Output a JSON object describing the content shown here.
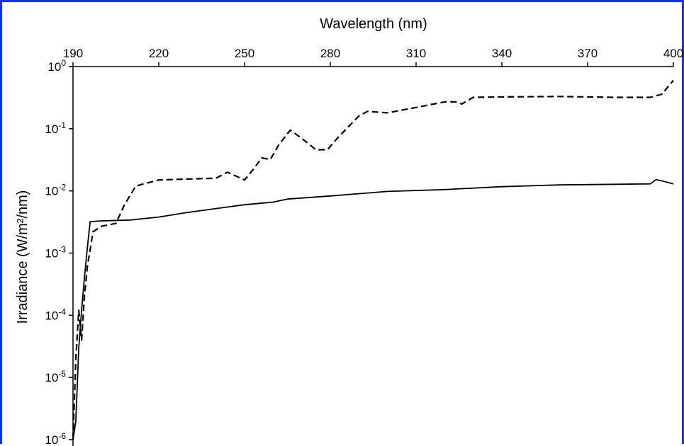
{
  "chart_data": {
    "type": "line",
    "xlabel": "Wavelength (nm)",
    "ylabel": "Irradiance (W/m²/nm)",
    "x_axis_position": "top",
    "xlim": [
      190,
      400
    ],
    "ylim": [
      1e-06,
      1
    ],
    "y_scale": "log",
    "grid": false,
    "legend": "none",
    "x_ticks": [
      190,
      220,
      250,
      280,
      310,
      340,
      370,
      400
    ],
    "y_ticks": [
      {
        "value": 1,
        "base": "10",
        "exp": "0"
      },
      {
        "value": 0.1,
        "base": "10",
        "exp": "-1"
      },
      {
        "value": 0.01,
        "base": "10",
        "exp": "-2"
      },
      {
        "value": 0.001,
        "base": "10",
        "exp": "-3"
      },
      {
        "value": 0.0001,
        "base": "10",
        "exp": "-4"
      },
      {
        "value": 1e-05,
        "base": "10",
        "exp": "-5"
      },
      {
        "value": 1e-06,
        "base": "10",
        "exp": "-6"
      }
    ],
    "series": [
      {
        "style": "solid",
        "color": "#000000",
        "points": [
          [
            190,
            1e-06
          ],
          [
            191,
            2e-06
          ],
          [
            192,
            3e-05
          ],
          [
            193,
            0.00012
          ],
          [
            194,
            0.0004
          ],
          [
            195,
            0.0012
          ],
          [
            196,
            0.0032
          ],
          [
            200,
            0.0033
          ],
          [
            210,
            0.0034
          ],
          [
            220,
            0.0038
          ],
          [
            230,
            0.0045
          ],
          [
            240,
            0.0052
          ],
          [
            250,
            0.006
          ],
          [
            260,
            0.0066
          ],
          [
            265,
            0.0074
          ],
          [
            280,
            0.0083
          ],
          [
            300,
            0.0098
          ],
          [
            320,
            0.0105
          ],
          [
            340,
            0.0117
          ],
          [
            360,
            0.0125
          ],
          [
            380,
            0.0128
          ],
          [
            392,
            0.013
          ],
          [
            394,
            0.0152
          ],
          [
            396,
            0.0145
          ],
          [
            400,
            0.013
          ]
        ]
      },
      {
        "style": "dashed",
        "color": "#000000",
        "points": [
          [
            190,
            1e-06
          ],
          [
            191,
            2e-05
          ],
          [
            192,
            0.00012
          ],
          [
            193,
            4e-05
          ],
          [
            194,
            0.0002
          ],
          [
            195,
            0.0006
          ],
          [
            197,
            0.0022
          ],
          [
            200,
            0.0027
          ],
          [
            205,
            0.003
          ],
          [
            208,
            0.006
          ],
          [
            212,
            0.012
          ],
          [
            220,
            0.015
          ],
          [
            230,
            0.0155
          ],
          [
            240,
            0.016
          ],
          [
            244,
            0.02
          ],
          [
            250,
            0.015
          ],
          [
            253,
            0.022
          ],
          [
            256,
            0.034
          ],
          [
            259,
            0.032
          ],
          [
            262,
            0.055
          ],
          [
            266,
            0.095
          ],
          [
            270,
            0.07
          ],
          [
            275,
            0.046
          ],
          [
            279,
            0.046
          ],
          [
            283,
            0.075
          ],
          [
            290,
            0.16
          ],
          [
            293,
            0.19
          ],
          [
            300,
            0.18
          ],
          [
            310,
            0.22
          ],
          [
            320,
            0.27
          ],
          [
            324,
            0.27
          ],
          [
            326,
            0.25
          ],
          [
            330,
            0.32
          ],
          [
            340,
            0.325
          ],
          [
            360,
            0.33
          ],
          [
            380,
            0.32
          ],
          [
            392,
            0.32
          ],
          [
            396,
            0.36
          ],
          [
            400,
            0.6
          ]
        ]
      }
    ]
  }
}
